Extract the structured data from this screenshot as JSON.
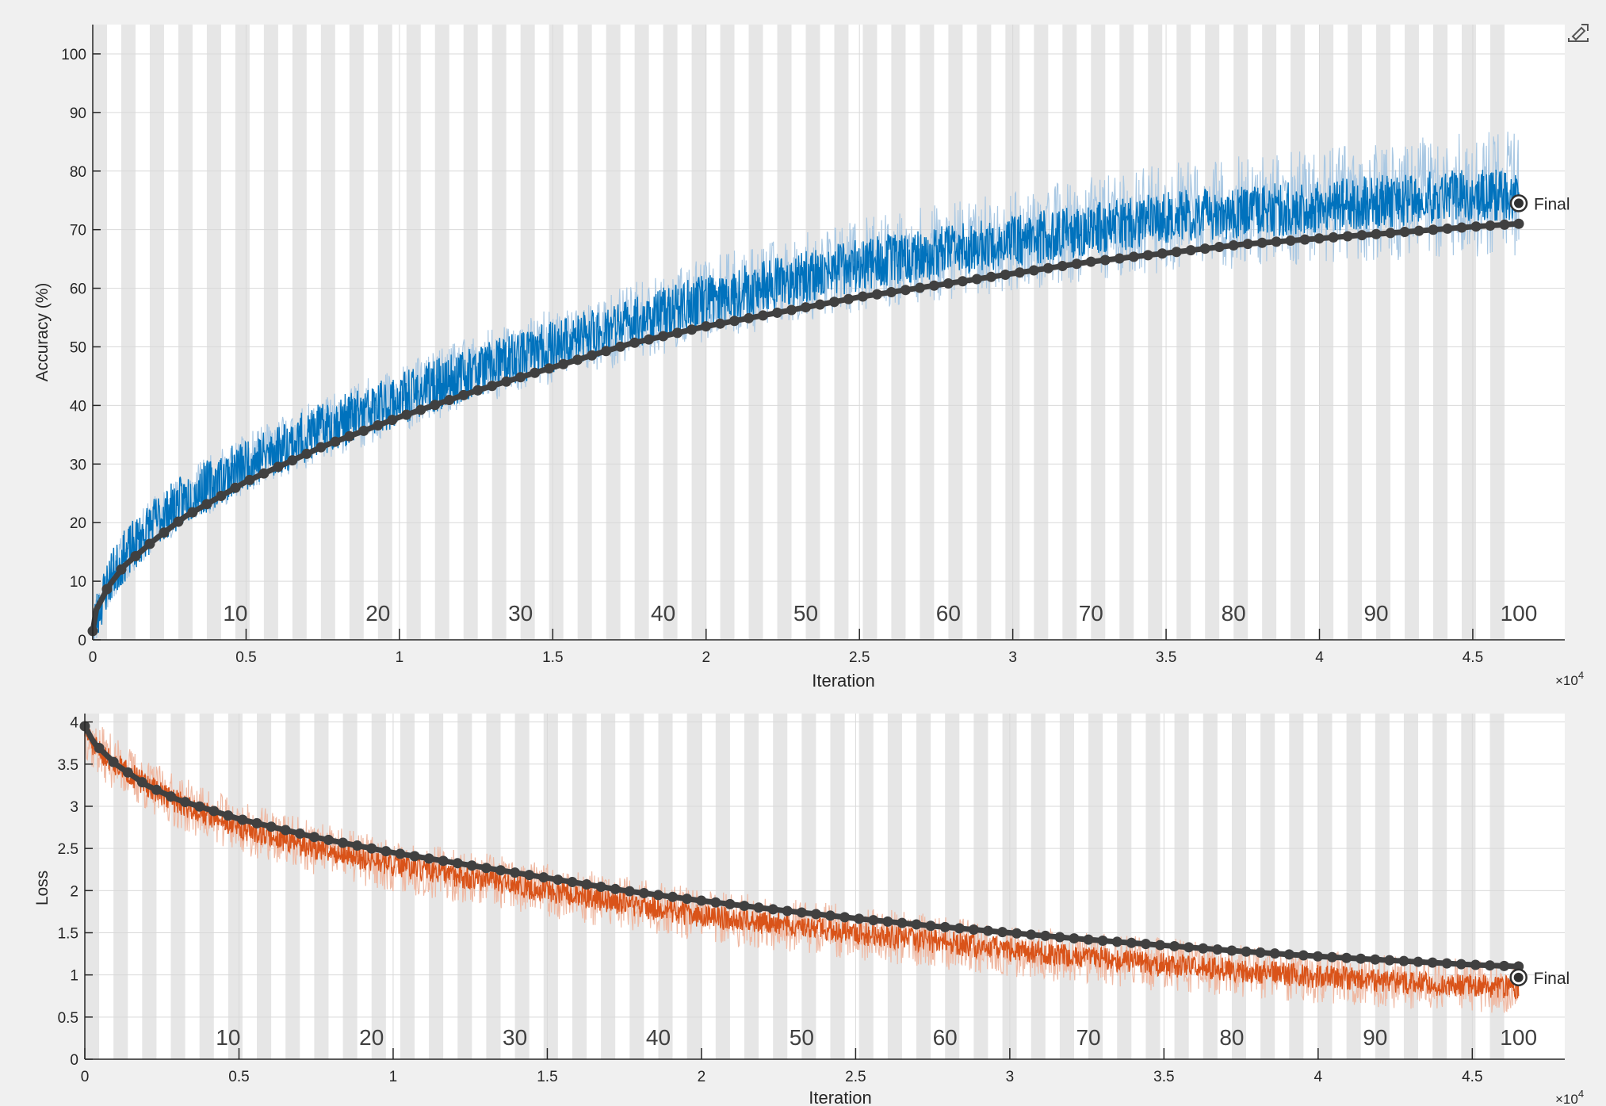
{
  "toolbar": {
    "export_icon": "export-axes-icon"
  },
  "colors": {
    "background": "#f0f0f0",
    "axes_bg": "#ffffff",
    "epoch_band": "#e6e6e6",
    "grid": "#d9d9d9",
    "accuracy_raw": "#0072bd",
    "accuracy_light": "#a9c8e3",
    "loss_raw": "#d95319",
    "loss_light": "#efb9a3",
    "smoothed": "#404040"
  },
  "chart_data": [
    {
      "type": "line",
      "xlabel": "Iteration",
      "ylabel": "Accuracy (%)",
      "x_multiplier_label": "×10",
      "x_multiplier_exponent": "4",
      "xlim": [
        0,
        48000
      ],
      "ylim": [
        0,
        105
      ],
      "xticks": [
        0,
        5000,
        10000,
        15000,
        20000,
        25000,
        30000,
        35000,
        40000,
        45000
      ],
      "xtick_labels": [
        "0",
        "0.5",
        "1",
        "1.5",
        "2",
        "2.5",
        "3",
        "3.5",
        "4",
        "4.5"
      ],
      "yticks": [
        0,
        10,
        20,
        30,
        40,
        50,
        60,
        70,
        80,
        90,
        100
      ],
      "ytick_labels": [
        "0",
        "10",
        "20",
        "30",
        "40",
        "50",
        "60",
        "70",
        "80",
        "90",
        "100"
      ],
      "epoch_labels": [
        "10",
        "20",
        "30",
        "40",
        "50",
        "60",
        "70",
        "80",
        "90",
        "100"
      ],
      "epochs": 100,
      "final_iteration": 46500,
      "grid": true,
      "series": [
        {
          "role": "raw",
          "x": [
            0,
            500,
            1000,
            2000,
            3000,
            5000,
            7500,
            10000,
            12500,
            15000,
            17500,
            20000,
            22500,
            25000,
            27500,
            30000,
            32500,
            35000,
            37500,
            40000,
            42500,
            45000,
            46500
          ],
          "y": [
            2,
            10,
            14,
            20,
            24,
            30,
            36,
            41,
            46,
            50,
            54,
            58,
            61,
            64,
            66,
            68,
            70,
            72,
            73,
            74,
            75,
            76,
            76
          ]
        },
        {
          "role": "smoothed",
          "x": [
            0,
            100,
            500,
            1000,
            2000,
            3000,
            5000,
            7500,
            10000,
            12500,
            15000,
            17500,
            20000,
            22500,
            25000,
            27500,
            30000,
            32500,
            35000,
            37500,
            40000,
            42500,
            45000,
            46500
          ],
          "y": [
            1.5,
            5,
            9,
            12.5,
            17,
            21,
            27,
            33,
            38,
            42.5,
            46.5,
            50.5,
            53.5,
            56,
            58.5,
            60.5,
            62.5,
            64.5,
            66,
            67.5,
            68.5,
            69.5,
            70.5,
            71
          ]
        }
      ],
      "final_value": 74.5,
      "final_label": "Final"
    },
    {
      "type": "line",
      "xlabel": "Iteration",
      "ylabel": "Loss",
      "x_multiplier_label": "×10",
      "x_multiplier_exponent": "4",
      "xlim": [
        0,
        48000
      ],
      "ylim": [
        0,
        4.1
      ],
      "xticks": [
        0,
        5000,
        10000,
        15000,
        20000,
        25000,
        30000,
        35000,
        40000,
        45000
      ],
      "xtick_labels": [
        "0",
        "0.5",
        "1",
        "1.5",
        "2",
        "2.5",
        "3",
        "3.5",
        "4",
        "4.5"
      ],
      "yticks": [
        0,
        0.5,
        1,
        1.5,
        2,
        2.5,
        3,
        3.5,
        4
      ],
      "ytick_labels": [
        "0",
        "0.5",
        "1",
        "1.5",
        "2",
        "2.5",
        "3",
        "3.5",
        "4"
      ],
      "epoch_labels": [
        "10",
        "20",
        "30",
        "40",
        "50",
        "60",
        "70",
        "80",
        "90",
        "100"
      ],
      "epochs": 100,
      "final_iteration": 46500,
      "grid": true,
      "series": [
        {
          "role": "raw",
          "x": [
            0,
            300,
            1000,
            2000,
            3000,
            5000,
            7500,
            10000,
            12500,
            15000,
            17500,
            20000,
            22500,
            25000,
            27500,
            30000,
            32500,
            35000,
            37500,
            40000,
            42500,
            45000,
            46500
          ],
          "y": [
            3.9,
            3.7,
            3.5,
            3.25,
            3.05,
            2.75,
            2.5,
            2.3,
            2.15,
            2.0,
            1.85,
            1.7,
            1.6,
            1.5,
            1.4,
            1.3,
            1.2,
            1.12,
            1.05,
            0.98,
            0.92,
            0.87,
            0.85
          ]
        },
        {
          "role": "smoothed",
          "x": [
            0,
            300,
            1000,
            2000,
            3000,
            5000,
            7500,
            10000,
            12500,
            15000,
            17500,
            20000,
            22500,
            25000,
            27500,
            30000,
            32500,
            35000,
            37500,
            40000,
            42500,
            45000,
            46500
          ],
          "y": [
            3.95,
            3.75,
            3.5,
            3.25,
            3.08,
            2.85,
            2.63,
            2.45,
            2.3,
            2.15,
            2.0,
            1.88,
            1.77,
            1.67,
            1.58,
            1.5,
            1.42,
            1.35,
            1.28,
            1.22,
            1.17,
            1.12,
            1.1
          ]
        }
      ],
      "final_value": 0.97,
      "final_label": "Final"
    }
  ]
}
